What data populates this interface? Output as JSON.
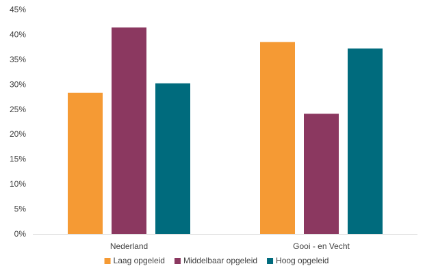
{
  "chart_data": {
    "type": "bar",
    "categories": [
      "Nederland",
      "Gooi - en Vecht"
    ],
    "series": [
      {
        "name": "Laag opgeleid",
        "values": [
          28.3,
          38.5
        ],
        "color": "#F59A34"
      },
      {
        "name": "Middelbaar opgeleid",
        "values": [
          41.4,
          24.1
        ],
        "color": "#8B3860"
      },
      {
        "name": "Hoog opgeleid",
        "values": [
          30.2,
          37.2
        ],
        "color": "#006B7D"
      }
    ],
    "ylim": [
      0,
      45
    ],
    "y_ticks": [
      "0%",
      "5%",
      "10%",
      "15%",
      "20%",
      "25%",
      "30%",
      "35%",
      "40%",
      "45%"
    ],
    "y_unit": "%",
    "grid": false,
    "legend_position": "bottom"
  }
}
